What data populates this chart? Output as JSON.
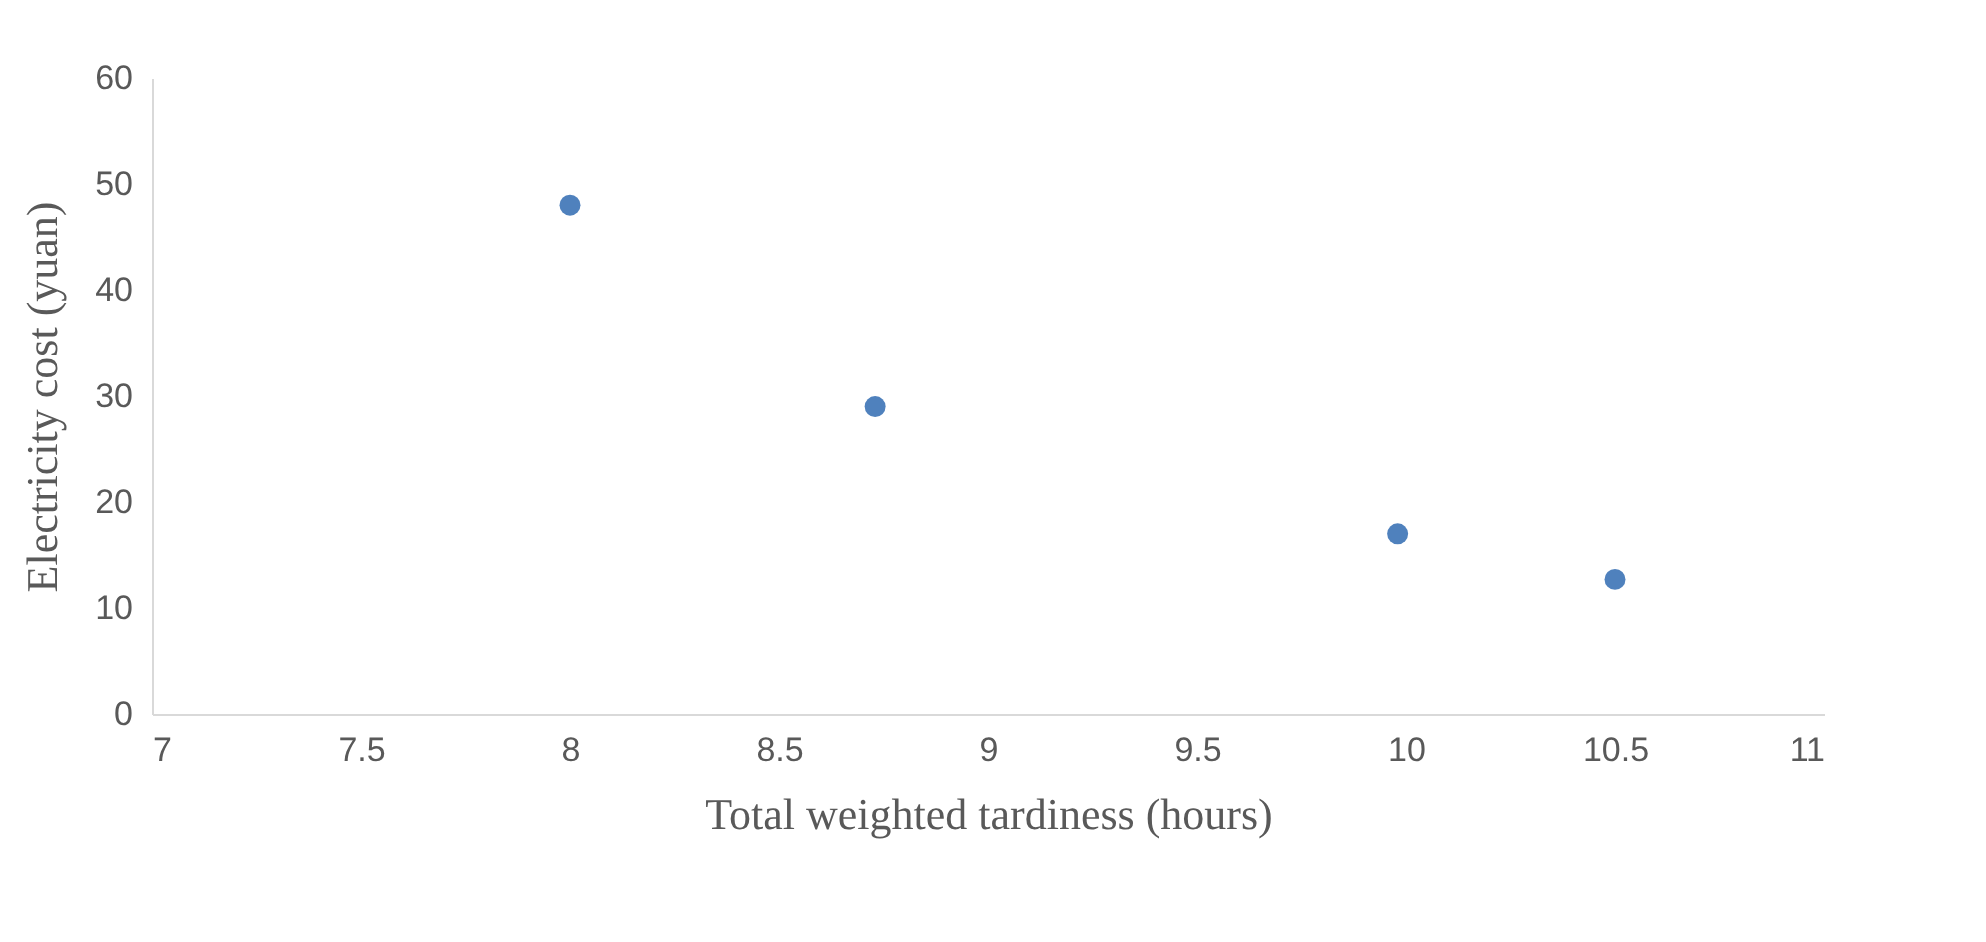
{
  "chart_data": {
    "type": "scatter",
    "xlabel": "Total weighted tardiness (hours)",
    "ylabel": "Electricity cost (yuan)",
    "x": [
      8.0,
      8.73,
      9.98,
      10.5
    ],
    "series": [
      {
        "color": "#4f81bd",
        "values": [
          48,
          29,
          17,
          12.7
        ]
      }
    ],
    "xlim": [
      7,
      11
    ],
    "xticks": [
      7,
      7.5,
      8,
      8.5,
      9,
      9.5,
      10,
      10.5,
      11
    ],
    "ylim": [
      0,
      60
    ],
    "yticks": [
      0,
      10,
      20,
      30,
      40,
      50,
      60
    ],
    "grid": false,
    "legend": false,
    "marker": "circle"
  }
}
